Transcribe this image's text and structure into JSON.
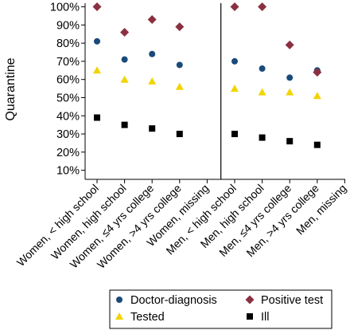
{
  "chart_data": {
    "type": "scatter",
    "ylabel": "Quarantine",
    "y_unit": "%",
    "ylim": [
      5,
      102
    ],
    "y_ticks": [
      "10%",
      "20%",
      "30%",
      "40%",
      "50%",
      "60%",
      "70%",
      "80%",
      "90%",
      "100%"
    ],
    "categories": [
      "Women, < high school",
      "Women, high school",
      "Women, ≤4 yrs college",
      "Women, >4 yrs college",
      "Women, missing",
      "Men, < high school",
      "Men, high school",
      "Men, ≤4 yrs college",
      "Men, >4 yrs college",
      "Men, missing"
    ],
    "panel_divider_after_index": 4,
    "grid": false,
    "legend_position": "bottom",
    "series": [
      {
        "name": "Doctor-diagnosis",
        "marker": "circle",
        "color": "#1a4a7a",
        "values": [
          81,
          71,
          74,
          68,
          null,
          70,
          66,
          61,
          65,
          null
        ]
      },
      {
        "name": "Positive test",
        "marker": "diamond",
        "color": "#8b3040",
        "values": [
          100,
          86,
          93,
          89,
          null,
          100,
          100,
          79,
          64,
          null
        ]
      },
      {
        "name": "Tested",
        "marker": "triangle",
        "color": "#f2d400",
        "values": [
          65,
          60,
          59,
          56,
          null,
          55,
          53,
          53,
          51,
          null
        ]
      },
      {
        "name": "Ill",
        "marker": "square",
        "color": "#000000",
        "values": [
          39,
          35,
          33,
          30,
          null,
          30,
          28,
          26,
          24,
          null
        ]
      }
    ]
  }
}
